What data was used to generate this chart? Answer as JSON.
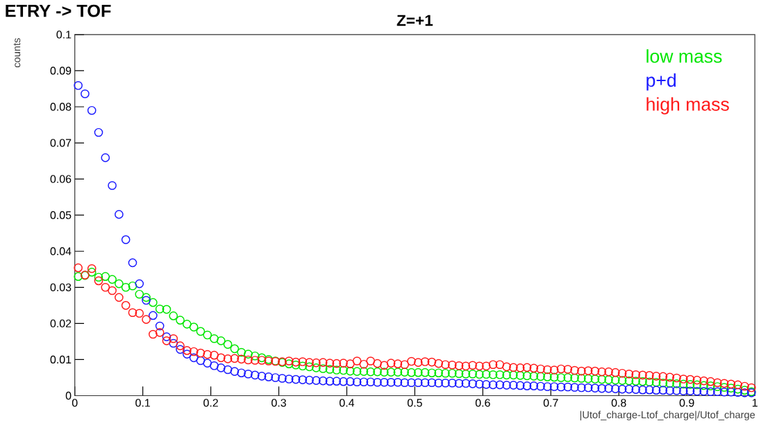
{
  "chart_data": {
    "type": "scatter",
    "title": "Z=+1",
    "xlabel": "|Utof_charge-Ltof_charge|/Utof_charge",
    "ylabel": "counts",
    "annotations": [
      "ETRY -> TOF"
    ],
    "x": [
      0.005,
      0.015,
      0.025,
      0.035,
      0.045,
      0.055,
      0.065,
      0.075,
      0.085,
      0.095,
      0.105,
      0.115,
      0.125,
      0.135,
      0.145,
      0.155,
      0.165,
      0.175,
      0.185,
      0.195,
      0.205,
      0.215,
      0.225,
      0.235,
      0.245,
      0.255,
      0.265,
      0.275,
      0.285,
      0.295,
      0.305,
      0.315,
      0.325,
      0.335,
      0.345,
      0.355,
      0.365,
      0.375,
      0.385,
      0.395,
      0.405,
      0.415,
      0.425,
      0.435,
      0.445,
      0.455,
      0.465,
      0.475,
      0.485,
      0.495,
      0.505,
      0.515,
      0.525,
      0.535,
      0.545,
      0.555,
      0.565,
      0.575,
      0.585,
      0.595,
      0.605,
      0.615,
      0.625,
      0.635,
      0.645,
      0.655,
      0.665,
      0.675,
      0.685,
      0.695,
      0.705,
      0.715,
      0.725,
      0.735,
      0.745,
      0.755,
      0.765,
      0.775,
      0.785,
      0.795,
      0.805,
      0.815,
      0.825,
      0.835,
      0.845,
      0.855,
      0.865,
      0.875,
      0.885,
      0.895,
      0.905,
      0.915,
      0.925,
      0.935,
      0.945,
      0.955,
      0.965,
      0.975,
      0.985,
      0.995
    ],
    "series": [
      {
        "name": "low mass",
        "color": "#00e600",
        "values": [
          0.033,
          0.0333,
          0.0342,
          0.0328,
          0.033,
          0.0322,
          0.031,
          0.03,
          0.0304,
          0.0281,
          0.0272,
          0.0258,
          0.024,
          0.0239,
          0.0221,
          0.0209,
          0.0198,
          0.019,
          0.0178,
          0.0168,
          0.0158,
          0.0152,
          0.0142,
          0.013,
          0.012,
          0.0115,
          0.011,
          0.0105,
          0.01,
          0.0096,
          0.0092,
          0.0088,
          0.0085,
          0.0082,
          0.008,
          0.0077,
          0.0075,
          0.0073,
          0.0071,
          0.007,
          0.0068,
          0.0067,
          0.0067,
          0.0066,
          0.0066,
          0.0065,
          0.0065,
          0.0065,
          0.0065,
          0.0064,
          0.0064,
          0.0064,
          0.0063,
          0.0063,
          0.0062,
          0.0062,
          0.0061,
          0.006,
          0.006,
          0.0059,
          0.0059,
          0.0058,
          0.0058,
          0.0057,
          0.0057,
          0.0056,
          0.0055,
          0.0054,
          0.0053,
          0.0052,
          0.0051,
          0.005,
          0.005,
          0.0049,
          0.0048,
          0.0047,
          0.0046,
          0.0045,
          0.0044,
          0.0043,
          0.0042,
          0.0041,
          0.004,
          0.0039,
          0.0038,
          0.0037,
          0.0035,
          0.0034,
          0.0033,
          0.0032,
          0.0031,
          0.003,
          0.0028,
          0.0027,
          0.0025,
          0.0023,
          0.0021,
          0.0018,
          0.0015,
          0.0011
        ]
      },
      {
        "name": "p+d",
        "color": "#1a1aff",
        "values": [
          0.0859,
          0.0836,
          0.079,
          0.0729,
          0.0659,
          0.0582,
          0.0502,
          0.0432,
          0.0368,
          0.031,
          0.0264,
          0.0222,
          0.0193,
          0.0163,
          0.0145,
          0.0128,
          0.0115,
          0.0105,
          0.0097,
          0.009,
          0.0083,
          0.0077,
          0.0072,
          0.0067,
          0.0063,
          0.006,
          0.0057,
          0.0054,
          0.0052,
          0.005,
          0.0048,
          0.0046,
          0.0045,
          0.0044,
          0.0043,
          0.0042,
          0.0041,
          0.004,
          0.004,
          0.0039,
          0.0039,
          0.0038,
          0.0038,
          0.0038,
          0.0037,
          0.0037,
          0.0037,
          0.0037,
          0.0036,
          0.0036,
          0.0036,
          0.0036,
          0.0036,
          0.0035,
          0.0035,
          0.0035,
          0.0034,
          0.0034,
          0.0033,
          0.0032,
          0.0031,
          0.003,
          0.003,
          0.0029,
          0.0029,
          0.0028,
          0.0027,
          0.0027,
          0.0026,
          0.0025,
          0.0025,
          0.0024,
          0.0024,
          0.0023,
          0.0022,
          0.0022,
          0.0021,
          0.002,
          0.002,
          0.0019,
          0.0018,
          0.0018,
          0.0017,
          0.0016,
          0.0016,
          0.0015,
          0.0015,
          0.0014,
          0.0014,
          0.0013,
          0.0013,
          0.0012,
          0.0012,
          0.0011,
          0.0011,
          0.001,
          0.001,
          0.0009,
          0.0008,
          0.0008
        ]
      },
      {
        "name": "high mass",
        "color": "#ff1a1a",
        "values": [
          0.0354,
          0.0334,
          0.0352,
          0.0318,
          0.03,
          0.0291,
          0.0272,
          0.025,
          0.023,
          0.0228,
          0.0211,
          0.017,
          0.0175,
          0.0152,
          0.0158,
          0.0138,
          0.0125,
          0.0122,
          0.0118,
          0.0114,
          0.0112,
          0.0105,
          0.0102,
          0.0103,
          0.0101,
          0.0099,
          0.0098,
          0.0098,
          0.0096,
          0.0095,
          0.0094,
          0.0096,
          0.0093,
          0.0094,
          0.0092,
          0.0091,
          0.0092,
          0.009,
          0.0089,
          0.009,
          0.0088,
          0.0096,
          0.0087,
          0.0096,
          0.0089,
          0.0084,
          0.009,
          0.0088,
          0.0086,
          0.0095,
          0.0092,
          0.0094,
          0.0093,
          0.0089,
          0.0086,
          0.0085,
          0.0083,
          0.0082,
          0.0084,
          0.0082,
          0.0082,
          0.0086,
          0.0086,
          0.008,
          0.0078,
          0.0077,
          0.0078,
          0.0076,
          0.0074,
          0.0072,
          0.0071,
          0.0074,
          0.0073,
          0.007,
          0.0068,
          0.0069,
          0.0068,
          0.0066,
          0.0066,
          0.0064,
          0.0062,
          0.006,
          0.0058,
          0.0057,
          0.0056,
          0.0054,
          0.0053,
          0.0051,
          0.0049,
          0.0046,
          0.0045,
          0.0043,
          0.0041,
          0.0039,
          0.0036,
          0.0034,
          0.0032,
          0.003,
          0.0026,
          0.0022
        ]
      }
    ],
    "xlim": [
      0,
      1
    ],
    "ylim": [
      0,
      0.1
    ],
    "xticks": [
      0,
      0.1,
      0.2,
      0.3,
      0.4,
      0.5,
      0.6,
      0.7,
      0.8,
      0.9,
      1
    ],
    "yticks": [
      0,
      0.01,
      0.02,
      0.03,
      0.04,
      0.05,
      0.06,
      0.07,
      0.08,
      0.09,
      0.1
    ],
    "marker": "circle",
    "grid": false,
    "legend": "top right"
  }
}
